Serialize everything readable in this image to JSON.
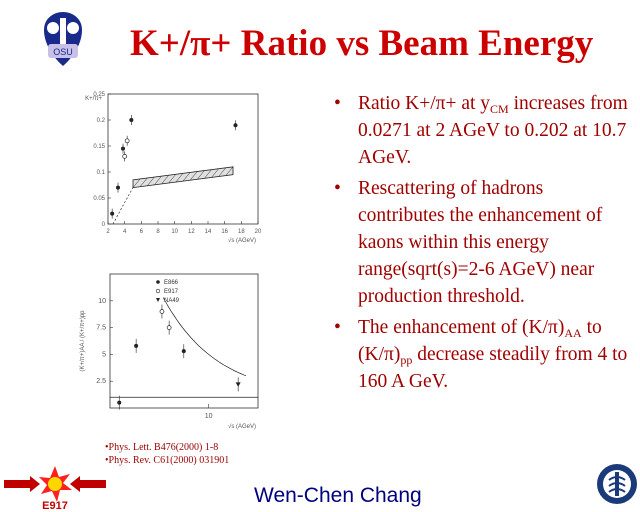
{
  "slide": {
    "title": "K+/π+ Ratio vs Beam Energy",
    "bullets": [
      {
        "parts": [
          "Ratio K+/π+ at y",
          "CM",
          " increases from 0.0271 at 2 AGeV to 0.202 at 10.7 AGeV."
        ]
      },
      {
        "parts": [
          "Rescattering of hadrons contributes the enhancement of kaons within this energy range(sqrt(s)=2-6 AGeV) near production threshold."
        ]
      },
      {
        "parts": [
          "The enhancement of (K/π)",
          "AA",
          " to (K/π)",
          "pp",
          " decrease steadily from 4 to 160 A GeV."
        ]
      }
    ],
    "references": [
      "•Phys. Lett. B476(2000) 1-8",
      "•Phys. Rev. C61(2000) 031901"
    ],
    "author": "Wen-Chen Chang",
    "logo_left_text": "OSU",
    "logo_bottom_left_text": "E917",
    "accent_color": "#cc0000",
    "bullet_color": "#a00000",
    "author_color": "#000080"
  },
  "chart_data": [
    {
      "type": "scatter",
      "xlabel": "√s (AGeV)",
      "ylabel": "K+/π+",
      "xlim": [
        2,
        20
      ],
      "ylim": [
        0,
        0.25
      ],
      "xticks": [
        "2",
        "4",
        "6",
        "8",
        "10",
        "12",
        "14",
        "16",
        "18",
        "20"
      ],
      "yticks": [
        "0",
        "0.05",
        "0.1",
        "0.15",
        "0.2",
        "0.25"
      ],
      "series": [
        {
          "marker": "filled",
          "points": [
            [
              2.5,
              0.02
            ],
            [
              3.2,
              0.07
            ],
            [
              3.8,
              0.145
            ],
            [
              4.8,
              0.2
            ],
            [
              17.3,
              0.19
            ]
          ]
        },
        {
          "marker": "open",
          "points": [
            [
              4.0,
              0.13
            ],
            [
              4.3,
              0.16
            ]
          ]
        }
      ],
      "band": {
        "x": [
          5,
          17
        ],
        "low_start": 0.07,
        "low_end": 0.095,
        "high_start": 0.085,
        "high_end": 0.11
      }
    },
    {
      "type": "scatter",
      "xlabel": "√s (AGeV)",
      "ylabel": "(K+/π+)AA / (K+/π+)pp",
      "xscale": "log",
      "ylim": [
        0,
        12.5
      ],
      "yticks": [
        "2.5",
        "5",
        "7.5",
        "10"
      ],
      "xtick_label": "10",
      "legend": [
        "E866",
        "E917",
        "NA49"
      ],
      "legend_position": "top-left",
      "series": [
        {
          "name": "E866",
          "marker": "filled",
          "points": [
            [
              2.6,
              5.8
            ]
          ]
        },
        {
          "name": "E917",
          "marker": "open",
          "points": [
            [
              4.2,
              9.0
            ],
            [
              4.8,
              7.5
            ]
          ]
        },
        {
          "name": "NA49",
          "marker": "triangle",
          "points": [
            [
              17.3,
              2.2
            ]
          ]
        },
        {
          "marker": "filled",
          "points": [
            [
              6.3,
              5.3
            ],
            [
              1.9,
              0.5
            ]
          ]
        }
      ]
    }
  ]
}
